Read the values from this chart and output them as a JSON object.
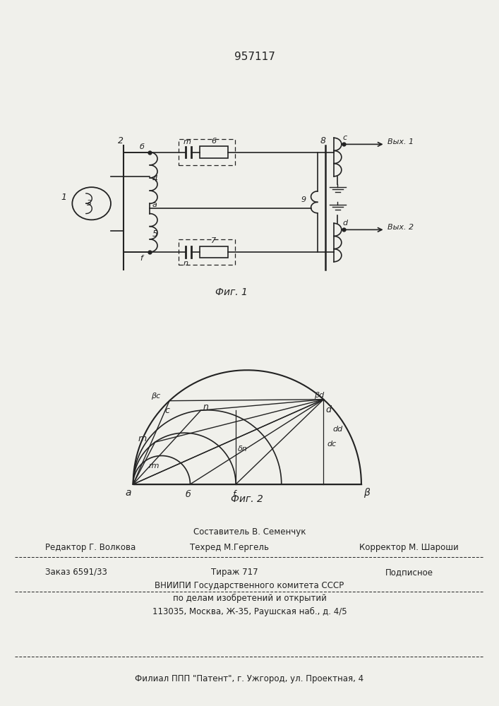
{
  "patent_number": "957117",
  "fig1_caption": "Фиг. 1",
  "fig2_caption": "Фиг. 2",
  "footer_line1_left": "Редактор Г. Волкова",
  "footer_line1_center": "Составитель В. Семенчук",
  "footer_line2_center": "Техред М.Гергель",
  "footer_line2_right": "Корректор М. Шароши",
  "footer_order": "Заказ 6591/33",
  "footer_tirazh": "Тираж 717",
  "footer_podp": "Подписное",
  "footer_line4": "ВНИИПИ Государственного комитета СССР",
  "footer_line5": "по делам изобретений и открытий",
  "footer_line6": "113035, Москва, Ж-35, Раушская наб., д. 4/5",
  "footer_line7": "Филиал ППП \"Патент\", г. Ужгород, ул. Проектная, 4",
  "bg_color": "#f0f0eb",
  "line_color": "#222222"
}
